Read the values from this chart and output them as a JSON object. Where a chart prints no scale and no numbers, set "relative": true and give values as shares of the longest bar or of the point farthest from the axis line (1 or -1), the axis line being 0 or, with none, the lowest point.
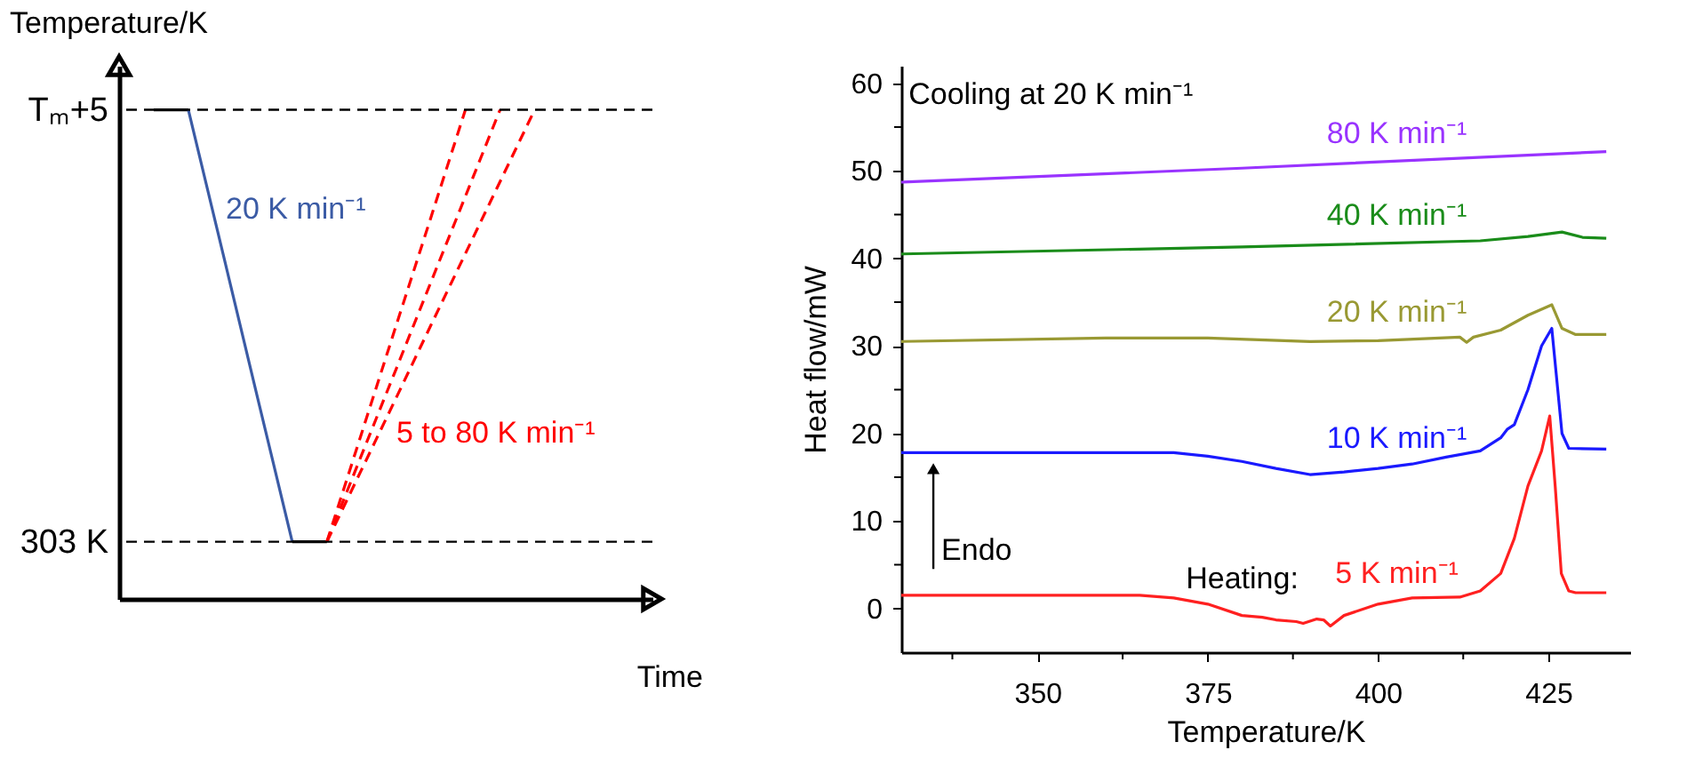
{
  "chart_data": [
    {
      "type": "line",
      "ylabel": "Temperature/K",
      "xlabel": "Time",
      "relative": true,
      "categories": [
        null,
        null,
        null,
        null,
        null,
        null,
        null,
        null,
        null,
        null,
        null,
        null,
        null
      ],
      "tick_labels": false,
      "grid": false,
      "ref_lines": [
        {
          "axis": "y",
          "value": 0.117,
          "label": "303 K",
          "color": "#000000",
          "line_style": "dashed"
        },
        {
          "axis": "y",
          "value": 1,
          "label": "Tₘ+5",
          "color": "#000000",
          "line_style": "dashed"
        }
      ],
      "series": [
        {
          "color": "#000000",
          "values": [
            1,
            1,
            null,
            null,
            null,
            null,
            null,
            null,
            null,
            null,
            null,
            null,
            null
          ]
        },
        {
          "name": "20 K min⁻¹",
          "color": "#3b5ba5",
          "values": [
            null,
            1,
            0.706,
            0.411,
            0.117,
            null,
            null,
            null,
            null,
            null,
            null,
            null,
            null
          ]
        },
        {
          "color": "#000000",
          "values": [
            null,
            null,
            null,
            null,
            0.117,
            0.117,
            null,
            null,
            null,
            null,
            null,
            null,
            null
          ]
        },
        {
          "color": "#ff0000",
          "line_style": "dashed",
          "values": [
            null,
            null,
            null,
            null,
            null,
            0.117,
            0.338,
            0.559,
            0.779,
            1,
            null,
            null,
            null
          ]
        },
        {
          "name": "5 to 80 K min⁻¹",
          "color": "#ff0000",
          "line_style": "dashed",
          "values": [
            null,
            null,
            null,
            null,
            null,
            0.117,
            0.294,
            0.47,
            0.647,
            0.823,
            1,
            null,
            null
          ]
        },
        {
          "color": "#ff0000",
          "line_style": "dashed",
          "values": [
            null,
            null,
            null,
            null,
            null,
            0.117,
            0.264,
            0.411,
            0.559,
            0.706,
            0.853,
            1,
            null
          ]
        }
      ]
    },
    {
      "type": "line",
      "ylabel": "Heat flow/mW",
      "xlabel": "Temperature/K",
      "xlim": [
        330,
        437
      ],
      "ylim": [
        -5,
        62
      ],
      "xticks": [
        {
          "value": 337.5,
          "label": null
        },
        350,
        {
          "value": 362.5,
          "label": null
        },
        375,
        {
          "value": 387.5,
          "label": null
        },
        400,
        {
          "value": 412.5,
          "label": null
        },
        425
      ],
      "yticks": [
        0,
        {
          "value": 5,
          "label": null
        },
        10,
        {
          "value": 15,
          "label": null
        },
        20,
        {
          "value": 25,
          "label": null
        },
        30,
        {
          "value": 35,
          "label": null
        },
        40,
        {
          "value": 45,
          "label": null
        },
        50,
        {
          "value": 55,
          "label": null
        },
        60
      ],
      "grid": false,
      "annotations": [
        "Cooling at 20 K min⁻¹",
        "Heating:",
        "Endo"
      ],
      "series": [
        {
          "name": "80 K min⁻¹",
          "color": "#9933ff",
          "x": [
            330,
            380,
            433.5
          ],
          "values": [
            48.7,
            50.3,
            52.2
          ]
        },
        {
          "name": "40 K min⁻¹",
          "color": "#1a8c1a",
          "x": [
            330,
            380,
            415,
            422,
            427,
            430,
            433.5
          ],
          "values": [
            40.5,
            41.3,
            42,
            42.5,
            43,
            42.4,
            42.3
          ]
        },
        {
          "name": "20 K min⁻¹",
          "color": "#999933",
          "x": [
            330,
            360,
            375,
            390,
            400,
            412,
            413,
            414,
            418,
            422,
            425.5,
            427,
            429,
            433.5
          ],
          "values": [
            30.5,
            30.9,
            30.9,
            30.5,
            30.6,
            31,
            30.4,
            31,
            31.8,
            33.5,
            34.7,
            32,
            31.3,
            31.3
          ]
        },
        {
          "name": "10 K min⁻¹",
          "color": "#1a1aff",
          "x": [
            330,
            370,
            375,
            380,
            385,
            390,
            395,
            400,
            405,
            410,
            415,
            418,
            419,
            420,
            422,
            424,
            425.5,
            426,
            427,
            428,
            433.5
          ],
          "values": [
            17.8,
            17.8,
            17.4,
            16.8,
            16,
            15.3,
            15.6,
            16,
            16.5,
            17.3,
            18,
            19.5,
            20.5,
            21,
            25,
            30,
            32,
            28,
            20,
            18.3,
            18.2
          ]
        },
        {
          "name": "5 K min⁻¹",
          "color": "#ff2020",
          "x": [
            330,
            365,
            370,
            375,
            380,
            383,
            385,
            388,
            389,
            391,
            392,
            393,
            395,
            400,
            405,
            412,
            415,
            418,
            420,
            422,
            424,
            425.2,
            426,
            426.9,
            428,
            429,
            433.5
          ],
          "values": [
            1.5,
            1.5,
            1.2,
            0.5,
            -0.8,
            -1,
            -1.3,
            -1.5,
            -1.7,
            -1.2,
            -1.3,
            -2,
            -0.8,
            0.5,
            1.2,
            1.3,
            2,
            4,
            8,
            14,
            18,
            22,
            14,
            4,
            2,
            1.8,
            1.8
          ]
        }
      ]
    }
  ]
}
